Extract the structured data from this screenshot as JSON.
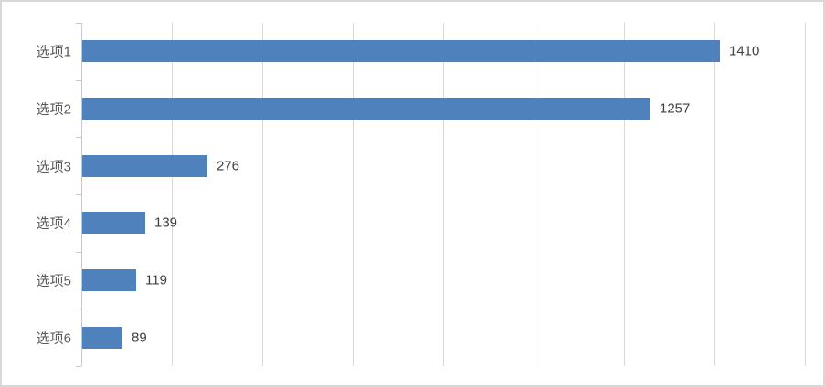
{
  "chart_data": {
    "type": "bar",
    "orientation": "horizontal",
    "title": "",
    "xlabel": "",
    "ylabel": "",
    "categories": [
      "选项1",
      "选项2",
      "选项3",
      "选项4",
      "选项5",
      "选项6"
    ],
    "values": [
      1410,
      1257,
      276,
      139,
      119,
      89
    ],
    "data_labels": [
      "1410",
      "1257",
      "276",
      "139",
      "119",
      "89"
    ],
    "xlim": [
      0,
      1600
    ],
    "gridline_interval": 200,
    "grid": true,
    "legend": false,
    "value_axis_labels_visible": false,
    "colors": {
      "bar": "#4f81bd",
      "gridline": "#d9d9d9",
      "axis_line": "#c8c8c8",
      "category_label": "#595959",
      "data_label": "#404040",
      "frame_border": "#d8d8d8",
      "background": "#ffffff"
    }
  }
}
